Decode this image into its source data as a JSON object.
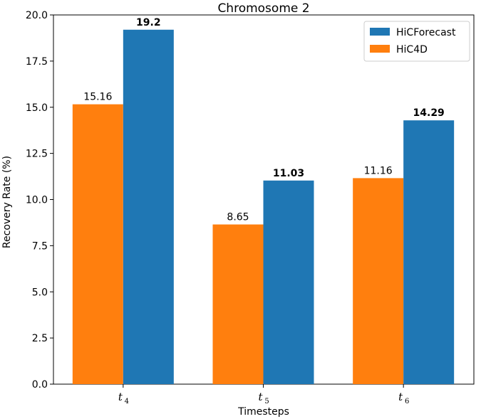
{
  "chart_data": {
    "type": "bar",
    "title": "Chromosome 2",
    "xlabel": "Timesteps",
    "ylabel": "Recovery Rate (%)",
    "ylim": [
      0,
      20.0
    ],
    "yticks": [
      "0.0",
      "2.5",
      "5.0",
      "7.5",
      "10.0",
      "12.5",
      "15.0",
      "17.5",
      "20.0"
    ],
    "categories": [
      {
        "main": "t",
        "sub": "4"
      },
      {
        "main": "t",
        "sub": "5"
      },
      {
        "main": "t",
        "sub": "6"
      }
    ],
    "series": [
      {
        "name": "HiC4D",
        "color": "#ff7f0e",
        "values": [
          15.16,
          8.65,
          11.16
        ],
        "labels": [
          "15.16",
          "8.65",
          "11.16"
        ],
        "bold_labels": false
      },
      {
        "name": "HiCForecast",
        "color": "#1f77b4",
        "values": [
          19.2,
          11.03,
          14.29
        ],
        "labels": [
          "19.2",
          "11.03",
          "14.29"
        ],
        "bold_labels": true
      }
    ],
    "legend": {
      "position": "top-right",
      "entries": [
        {
          "name": "HiCForecast",
          "color": "#1f77b4"
        },
        {
          "name": "HiC4D",
          "color": "#ff7f0e"
        }
      ]
    }
  }
}
